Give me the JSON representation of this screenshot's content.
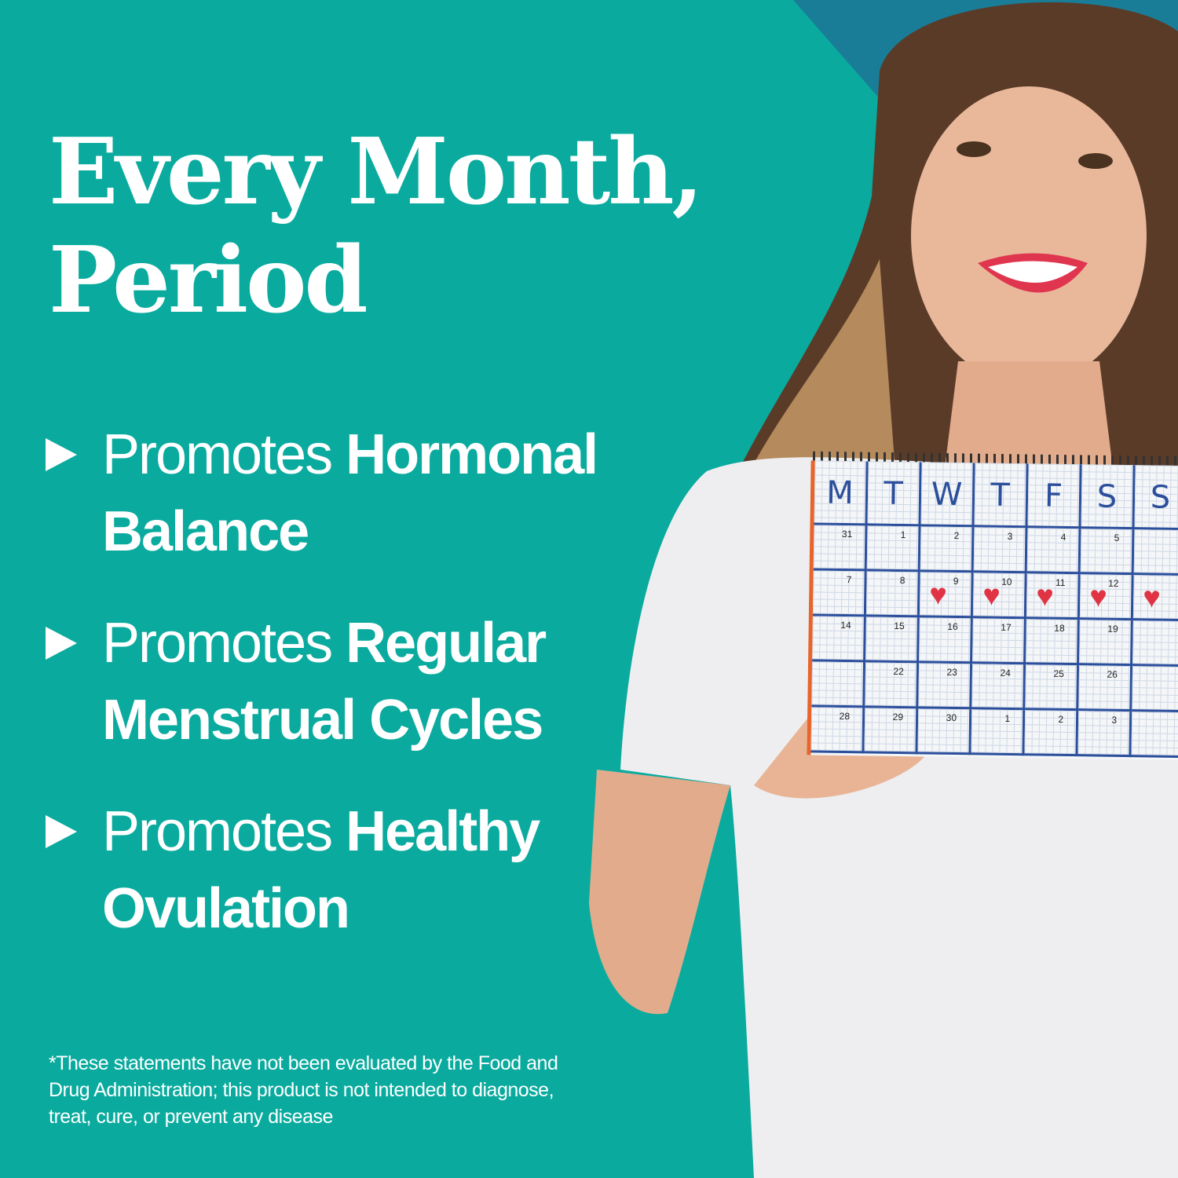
{
  "colors": {
    "background": "#0aab9e",
    "accent_triangle": "#1a7d98",
    "text": "#ffffff",
    "calendar_grid": "#2c4f9c",
    "heart": "#e03444"
  },
  "headline": {
    "line1": "Every Month,",
    "line2": "Period"
  },
  "bullets": [
    {
      "prefix": "Promotes ",
      "bold_line1": "Hormonal",
      "bold_line2": "Balance"
    },
    {
      "prefix": "Promotes ",
      "bold_line1": "Regular",
      "bold_line2": "Menstrual Cycles"
    },
    {
      "prefix": "Promotes ",
      "bold_line1": "Healthy",
      "bold_line2": "Ovulation"
    }
  ],
  "disclaimer": "*These statements have not been evaluated by the Food and Drug Administration; this product is not intended to diagnose, treat, cure, or prevent any disease",
  "calendar": {
    "days": [
      "M",
      "T",
      "W",
      "T",
      "F",
      "S",
      "S"
    ],
    "rows": [
      [
        "31",
        "1",
        "2",
        "3",
        "4",
        "5",
        ""
      ],
      [
        "7",
        "8",
        "9",
        "10",
        "11",
        "12",
        ""
      ],
      [
        "14",
        "15",
        "16",
        "17",
        "18",
        "19",
        ""
      ],
      [
        "",
        "22",
        "23",
        "24",
        "25",
        "26",
        ""
      ],
      [
        "28",
        "29",
        "30",
        "1",
        "2",
        "3",
        ""
      ]
    ],
    "hearts_row": 1,
    "hearts_cols": [
      2,
      3,
      4,
      5,
      6
    ]
  }
}
